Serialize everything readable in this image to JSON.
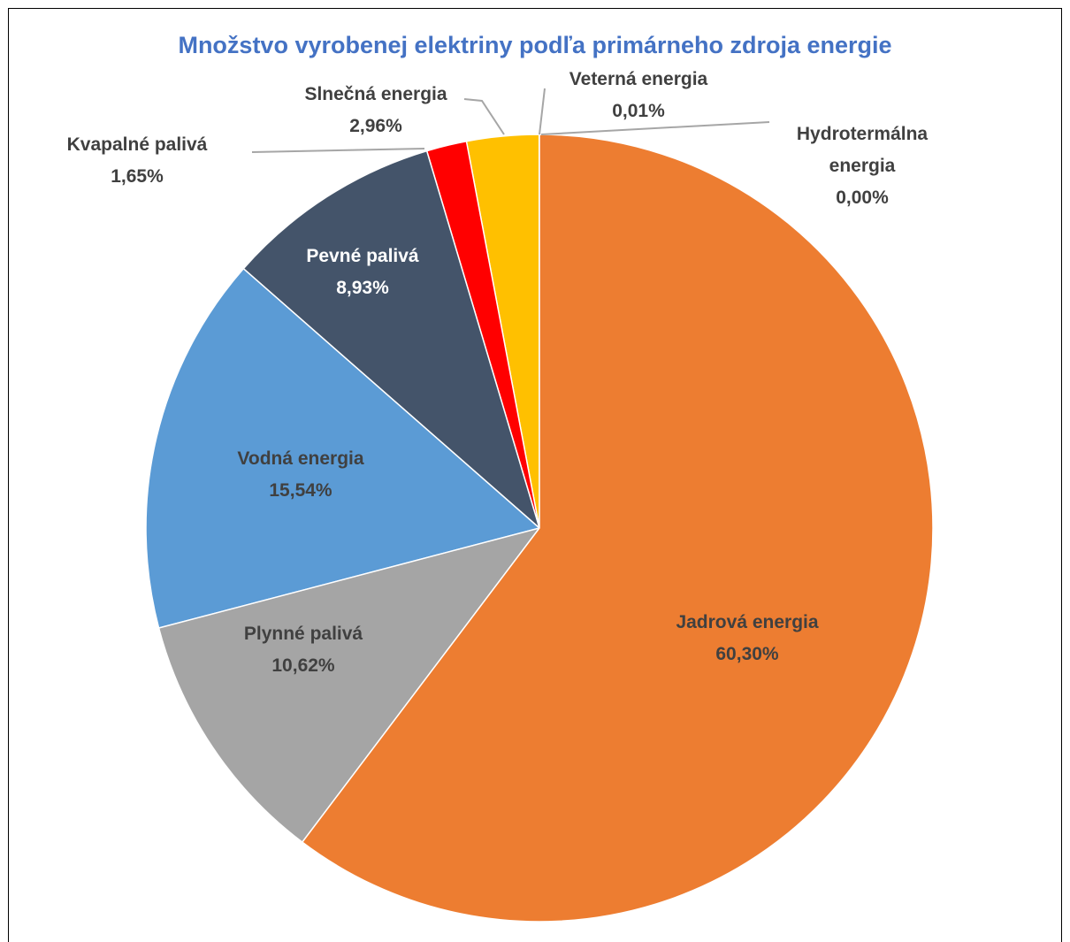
{
  "chart_data": {
    "type": "pie",
    "title": "Množstvo vyrobenej elektriny podľa primárneho zdroja energie",
    "categories": [
      "Jadrová energia",
      "Plynné palivá",
      "Vodná energia",
      "Pevné palivá",
      "Kvapalné palivá",
      "Slnečná energia",
      "Veterná energia",
      "Hydrotermálna energia"
    ],
    "values": [
      60.3,
      10.62,
      15.54,
      8.93,
      1.65,
      2.96,
      0.01,
      0.0
    ],
    "value_labels": [
      "60,30%",
      "10,62%",
      "15,54%",
      "8,93%",
      "1,65%",
      "2,96%",
      "0,01%",
      "0,00%"
    ],
    "colors": [
      "#ed7d31",
      "#a5a5a5",
      "#5b9bd5",
      "#44546a",
      "#ff0000",
      "#ffc000",
      "#70ad47",
      "#264478"
    ]
  }
}
